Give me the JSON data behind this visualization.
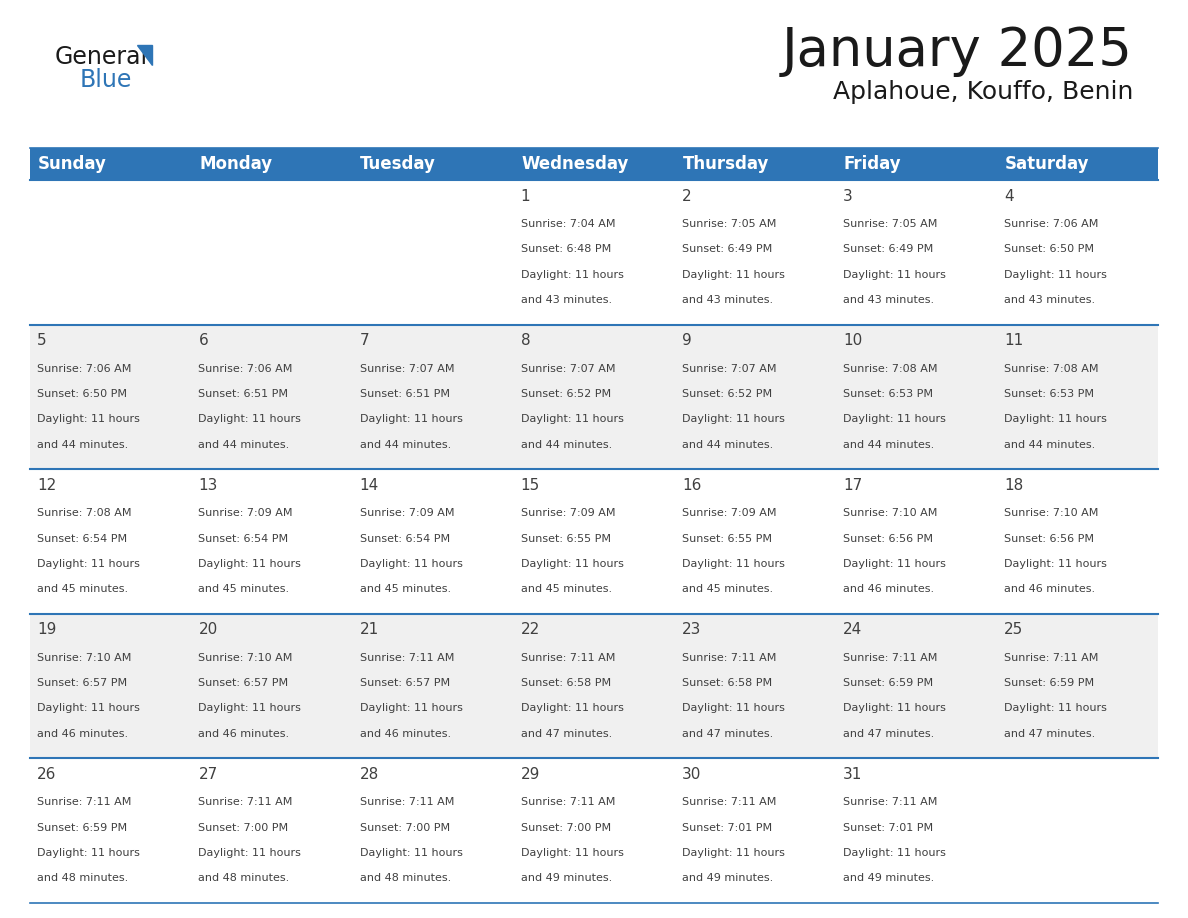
{
  "title": "January 2025",
  "subtitle": "Aplahoue, Kouffo, Benin",
  "days_of_week": [
    "Sunday",
    "Monday",
    "Tuesday",
    "Wednesday",
    "Thursday",
    "Friday",
    "Saturday"
  ],
  "header_bg": "#2E75B6",
  "header_text": "#FFFFFF",
  "row_bg_odd": "#FFFFFF",
  "row_bg_even": "#F0F0F0",
  "divider_color": "#2E75B6",
  "text_color": "#404040",
  "calendar_data": [
    {
      "day": 1,
      "col": 3,
      "row": 0,
      "sunrise": "7:04 AM",
      "sunset": "6:48 PM",
      "daylight_hrs": 11,
      "daylight_min": 43
    },
    {
      "day": 2,
      "col": 4,
      "row": 0,
      "sunrise": "7:05 AM",
      "sunset": "6:49 PM",
      "daylight_hrs": 11,
      "daylight_min": 43
    },
    {
      "day": 3,
      "col": 5,
      "row": 0,
      "sunrise": "7:05 AM",
      "sunset": "6:49 PM",
      "daylight_hrs": 11,
      "daylight_min": 43
    },
    {
      "day": 4,
      "col": 6,
      "row": 0,
      "sunrise": "7:06 AM",
      "sunset": "6:50 PM",
      "daylight_hrs": 11,
      "daylight_min": 43
    },
    {
      "day": 5,
      "col": 0,
      "row": 1,
      "sunrise": "7:06 AM",
      "sunset": "6:50 PM",
      "daylight_hrs": 11,
      "daylight_min": 44
    },
    {
      "day": 6,
      "col": 1,
      "row": 1,
      "sunrise": "7:06 AM",
      "sunset": "6:51 PM",
      "daylight_hrs": 11,
      "daylight_min": 44
    },
    {
      "day": 7,
      "col": 2,
      "row": 1,
      "sunrise": "7:07 AM",
      "sunset": "6:51 PM",
      "daylight_hrs": 11,
      "daylight_min": 44
    },
    {
      "day": 8,
      "col": 3,
      "row": 1,
      "sunrise": "7:07 AM",
      "sunset": "6:52 PM",
      "daylight_hrs": 11,
      "daylight_min": 44
    },
    {
      "day": 9,
      "col": 4,
      "row": 1,
      "sunrise": "7:07 AM",
      "sunset": "6:52 PM",
      "daylight_hrs": 11,
      "daylight_min": 44
    },
    {
      "day": 10,
      "col": 5,
      "row": 1,
      "sunrise": "7:08 AM",
      "sunset": "6:53 PM",
      "daylight_hrs": 11,
      "daylight_min": 44
    },
    {
      "day": 11,
      "col": 6,
      "row": 1,
      "sunrise": "7:08 AM",
      "sunset": "6:53 PM",
      "daylight_hrs": 11,
      "daylight_min": 44
    },
    {
      "day": 12,
      "col": 0,
      "row": 2,
      "sunrise": "7:08 AM",
      "sunset": "6:54 PM",
      "daylight_hrs": 11,
      "daylight_min": 45
    },
    {
      "day": 13,
      "col": 1,
      "row": 2,
      "sunrise": "7:09 AM",
      "sunset": "6:54 PM",
      "daylight_hrs": 11,
      "daylight_min": 45
    },
    {
      "day": 14,
      "col": 2,
      "row": 2,
      "sunrise": "7:09 AM",
      "sunset": "6:54 PM",
      "daylight_hrs": 11,
      "daylight_min": 45
    },
    {
      "day": 15,
      "col": 3,
      "row": 2,
      "sunrise": "7:09 AM",
      "sunset": "6:55 PM",
      "daylight_hrs": 11,
      "daylight_min": 45
    },
    {
      "day": 16,
      "col": 4,
      "row": 2,
      "sunrise": "7:09 AM",
      "sunset": "6:55 PM",
      "daylight_hrs": 11,
      "daylight_min": 45
    },
    {
      "day": 17,
      "col": 5,
      "row": 2,
      "sunrise": "7:10 AM",
      "sunset": "6:56 PM",
      "daylight_hrs": 11,
      "daylight_min": 46
    },
    {
      "day": 18,
      "col": 6,
      "row": 2,
      "sunrise": "7:10 AM",
      "sunset": "6:56 PM",
      "daylight_hrs": 11,
      "daylight_min": 46
    },
    {
      "day": 19,
      "col": 0,
      "row": 3,
      "sunrise": "7:10 AM",
      "sunset": "6:57 PM",
      "daylight_hrs": 11,
      "daylight_min": 46
    },
    {
      "day": 20,
      "col": 1,
      "row": 3,
      "sunrise": "7:10 AM",
      "sunset": "6:57 PM",
      "daylight_hrs": 11,
      "daylight_min": 46
    },
    {
      "day": 21,
      "col": 2,
      "row": 3,
      "sunrise": "7:11 AM",
      "sunset": "6:57 PM",
      "daylight_hrs": 11,
      "daylight_min": 46
    },
    {
      "day": 22,
      "col": 3,
      "row": 3,
      "sunrise": "7:11 AM",
      "sunset": "6:58 PM",
      "daylight_hrs": 11,
      "daylight_min": 47
    },
    {
      "day": 23,
      "col": 4,
      "row": 3,
      "sunrise": "7:11 AM",
      "sunset": "6:58 PM",
      "daylight_hrs": 11,
      "daylight_min": 47
    },
    {
      "day": 24,
      "col": 5,
      "row": 3,
      "sunrise": "7:11 AM",
      "sunset": "6:59 PM",
      "daylight_hrs": 11,
      "daylight_min": 47
    },
    {
      "day": 25,
      "col": 6,
      "row": 3,
      "sunrise": "7:11 AM",
      "sunset": "6:59 PM",
      "daylight_hrs": 11,
      "daylight_min": 47
    },
    {
      "day": 26,
      "col": 0,
      "row": 4,
      "sunrise": "7:11 AM",
      "sunset": "6:59 PM",
      "daylight_hrs": 11,
      "daylight_min": 48
    },
    {
      "day": 27,
      "col": 1,
      "row": 4,
      "sunrise": "7:11 AM",
      "sunset": "7:00 PM",
      "daylight_hrs": 11,
      "daylight_min": 48
    },
    {
      "day": 28,
      "col": 2,
      "row": 4,
      "sunrise": "7:11 AM",
      "sunset": "7:00 PM",
      "daylight_hrs": 11,
      "daylight_min": 48
    },
    {
      "day": 29,
      "col": 3,
      "row": 4,
      "sunrise": "7:11 AM",
      "sunset": "7:00 PM",
      "daylight_hrs": 11,
      "daylight_min": 49
    },
    {
      "day": 30,
      "col": 4,
      "row": 4,
      "sunrise": "7:11 AM",
      "sunset": "7:01 PM",
      "daylight_hrs": 11,
      "daylight_min": 49
    },
    {
      "day": 31,
      "col": 5,
      "row": 4,
      "sunrise": "7:11 AM",
      "sunset": "7:01 PM",
      "daylight_hrs": 11,
      "daylight_min": 49
    }
  ],
  "title_fontsize": 38,
  "subtitle_fontsize": 18,
  "header_fontsize": 12,
  "day_num_fontsize": 11,
  "cell_text_fontsize": 8.0
}
